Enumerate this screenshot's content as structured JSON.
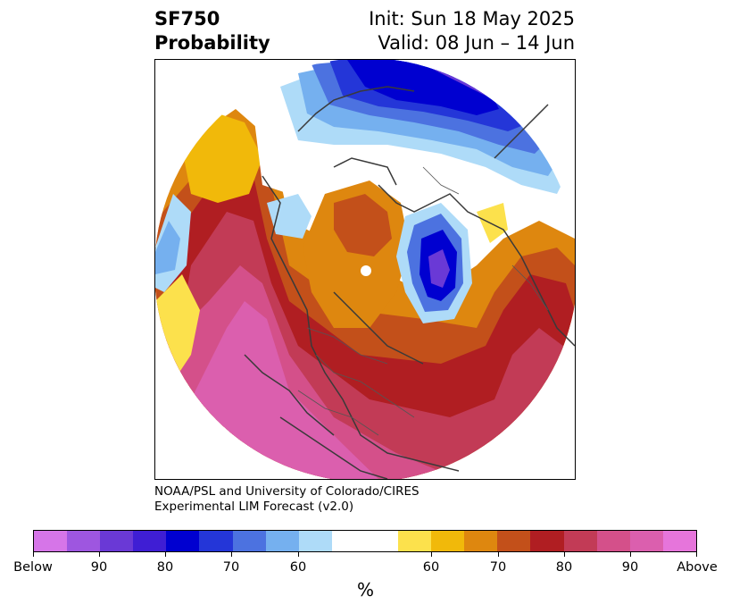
{
  "title": {
    "variable": "SF750",
    "subtitle": "Probability",
    "init": "Init: Sun 18 May 2025",
    "valid": "Valid: 08 Jun – 14 Jun"
  },
  "credit": {
    "line1": "NOAA/PSL and University of Colorado/CIRES",
    "line2": "Experimental LIM Forecast (v2.0)"
  },
  "colorbar": {
    "colors": [
      "#d675e8",
      "#9e56e0",
      "#6a39d6",
      "#3f1ed4",
      "#0000d0",
      "#2436d8",
      "#4c72e0",
      "#75b0ef",
      "#aedbf8",
      "#ffffff",
      "#ffffff",
      "#fce14c",
      "#f1b90a",
      "#de870f",
      "#c3501a",
      "#b01e22",
      "#c23b56",
      "#d4508a",
      "#db5fae",
      "#e675db"
    ],
    "tick_labels": [
      "Below",
      "90",
      "80",
      "70",
      "60",
      "60",
      "70",
      "80",
      "90",
      "Above"
    ],
    "units": "%"
  },
  "map": {
    "projection": "north-polar-stereographic",
    "field": "SF750 probability",
    "colors": {
      "deep_blue": "#0000d0",
      "purple": "#6a39d6",
      "mid_blue": "#4c72e0",
      "light_blue": "#aedbf8",
      "yellow": "#fce14c",
      "gold": "#f1b90a",
      "orange": "#de870f",
      "dark_orange": "#c3501a",
      "red": "#b01e22",
      "crimson": "#c23b56",
      "magenta": "#d4508a",
      "pink": "#db5fae",
      "coast": "#3a3a3a"
    }
  }
}
